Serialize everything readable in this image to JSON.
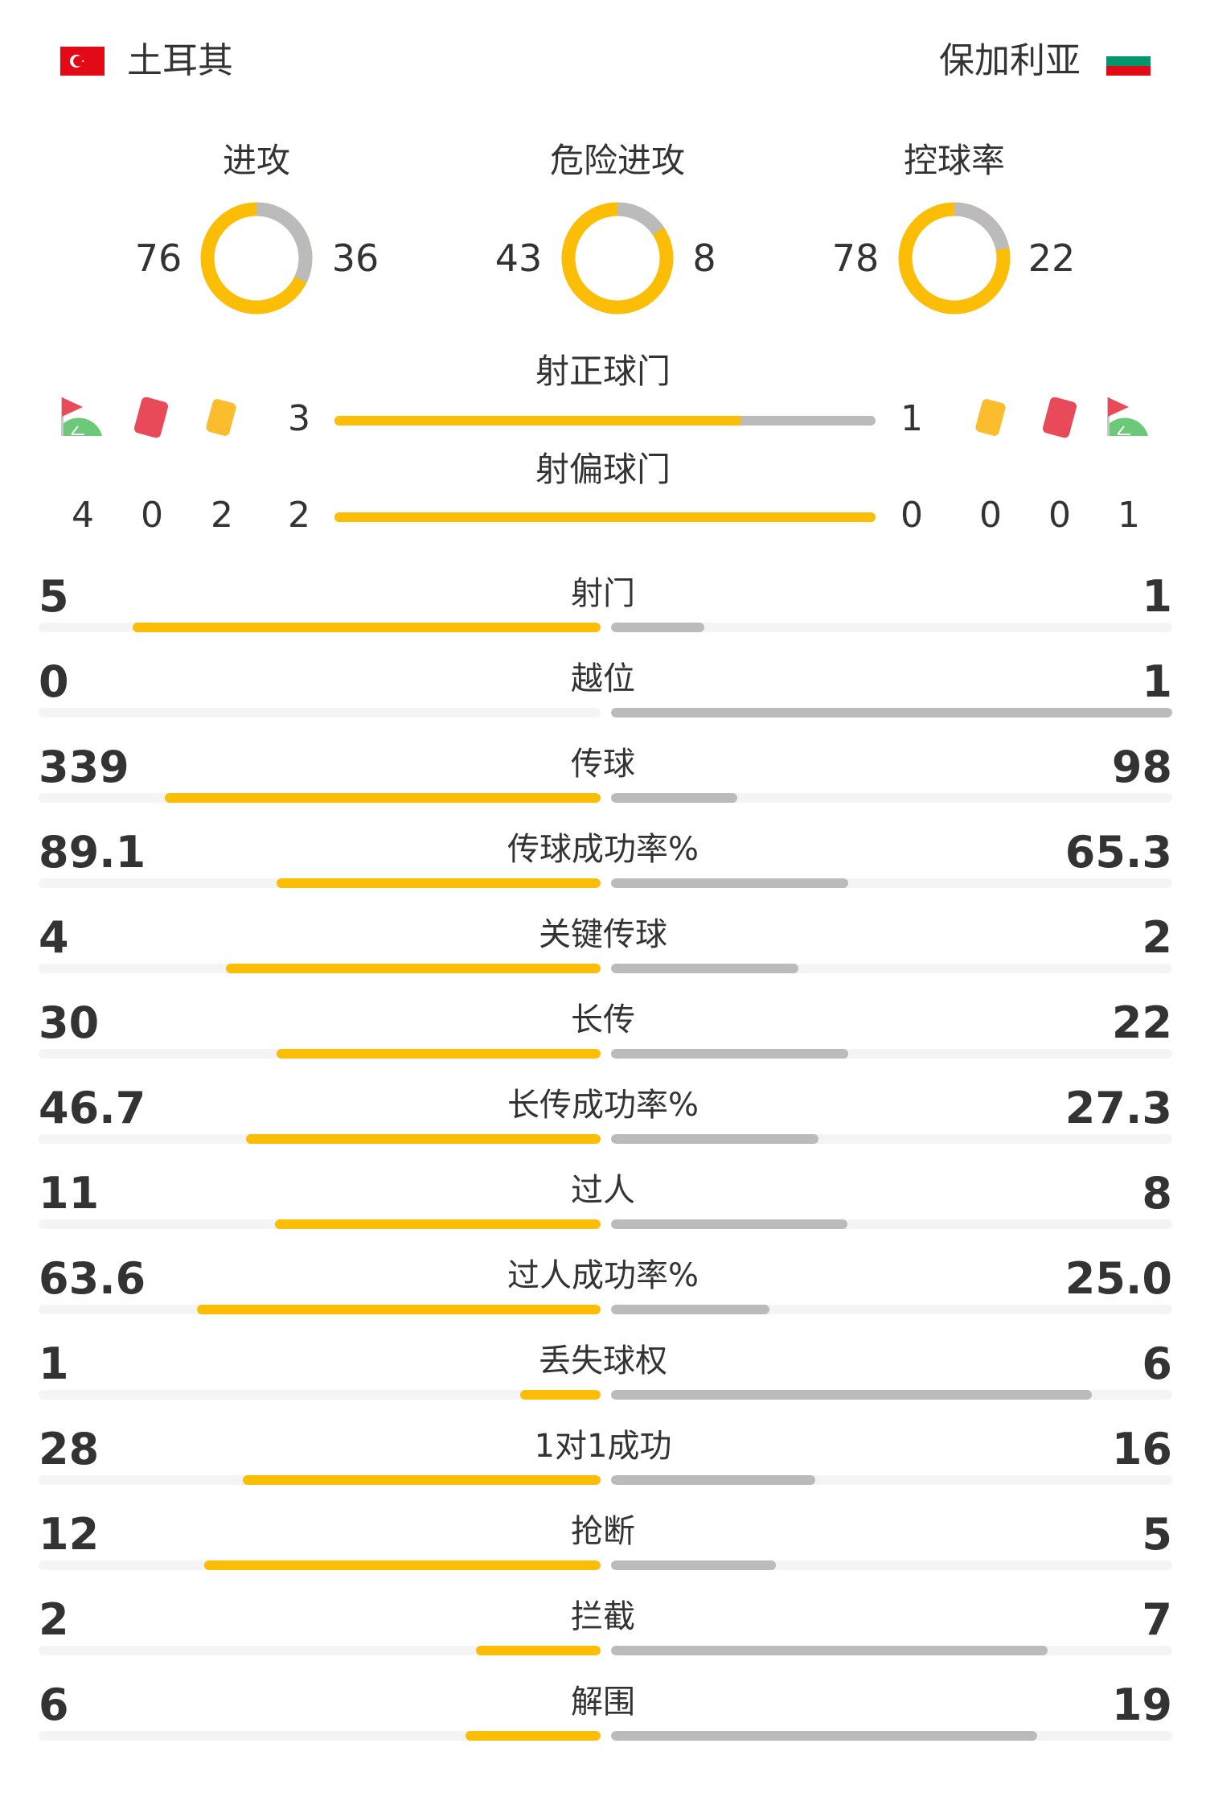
{
  "home": {
    "name": "土耳其",
    "flag": "turkey-flag"
  },
  "away": {
    "name": "保加利亚",
    "flag": "bulgaria-flag"
  },
  "colors": {
    "home": "#fbbd05",
    "away": "#bbbbbb",
    "track": "#f4f4f4",
    "red_card": "#e84a5a",
    "yellow_card": "#fbbd2e",
    "corner_green": "#6cc97a"
  },
  "donuts": [
    {
      "label": "进攻",
      "home": 76,
      "away": 36
    },
    {
      "label": "危险进攻",
      "home": 43,
      "away": 8
    },
    {
      "label": "控球率",
      "home": 78,
      "away": 22
    }
  ],
  "shots_on": {
    "label": "射正球门",
    "home": 3,
    "away": 1
  },
  "shots_off": {
    "label": "射偏球门",
    "home": 2,
    "away": 0
  },
  "events": {
    "home": {
      "corners": 4,
      "red_cards": 0,
      "yellow_cards": 2
    },
    "away": {
      "corners": 1,
      "red_cards": 0,
      "yellow_cards": 0
    }
  },
  "stats": [
    {
      "label": "射门",
      "home": "5",
      "away": "1"
    },
    {
      "label": "越位",
      "home": "0",
      "away": "1"
    },
    {
      "label": "传球",
      "home": "339",
      "away": "98"
    },
    {
      "label": "传球成功率%",
      "home": "89.1",
      "away": "65.3"
    },
    {
      "label": "关键传球",
      "home": "4",
      "away": "2"
    },
    {
      "label": "长传",
      "home": "30",
      "away": "22"
    },
    {
      "label": "长传成功率%",
      "home": "46.7",
      "away": "27.3"
    },
    {
      "label": "过人",
      "home": "11",
      "away": "8"
    },
    {
      "label": "过人成功率%",
      "home": "63.6",
      "away": "25.0"
    },
    {
      "label": "丢失球权",
      "home": "1",
      "away": "6"
    },
    {
      "label": "1对1成功",
      "home": "28",
      "away": "16"
    },
    {
      "label": "抢断",
      "home": "12",
      "away": "5"
    },
    {
      "label": "拦截",
      "home": "2",
      "away": "7"
    },
    {
      "label": "解围",
      "home": "6",
      "away": "19"
    }
  ]
}
